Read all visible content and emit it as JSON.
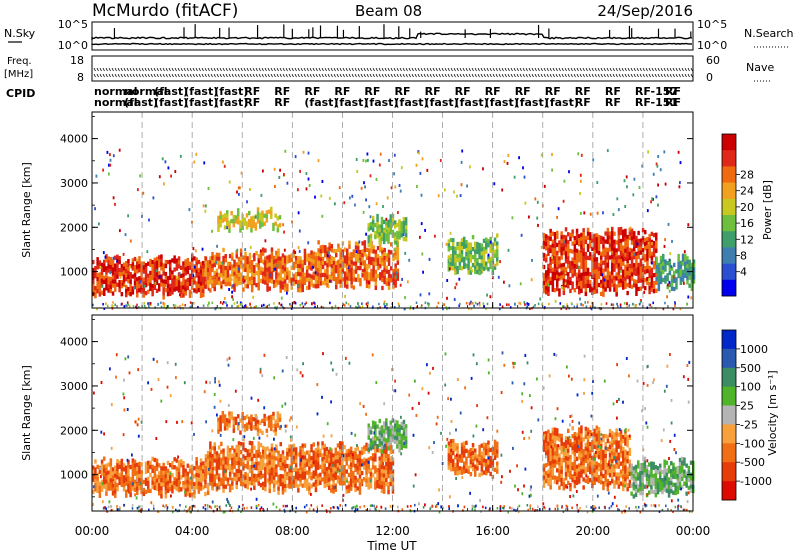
{
  "header": {
    "station": "McMurdo (fitACF)",
    "beam": "Beam 08",
    "date": "24/Sep/2016"
  },
  "strip_labels": {
    "nsky": "N.Sky",
    "nsky_top": "10^5",
    "nsky_bottom": "10^0",
    "nsearch": "N.Search",
    "nsearch_top": "10^5",
    "nsearch_bottom": "10^0",
    "freq_top": "Freq.",
    "freq_unit": "[MHz]",
    "freq_hi": "18",
    "freq_lo": "8",
    "nave": "Nave",
    "nave_hi": "60",
    "nave_lo": "0",
    "cpid": "CPID",
    "cpid_row1": [
      "normal",
      "normal",
      "(fast)",
      "(fast)",
      "(fast)",
      "RF",
      "RF",
      "RF",
      "RF",
      "RF",
      "RF",
      "RF",
      "RF",
      "RF",
      "RF",
      "RF",
      "RF",
      "RF",
      "RF-157",
      "RF"
    ],
    "cpid_row2": [
      "normal",
      "(fast)",
      "(fast)",
      "(fast)",
      "(fast)",
      "RF",
      "RF",
      "(fast)",
      "(fast)",
      "(fast)",
      "(fast)",
      "(fast)",
      "(fast)",
      "(fast)",
      "(fast)",
      "(fast)",
      "RF",
      "RF",
      "RF-151",
      "RF"
    ]
  },
  "x_axis": {
    "label": "Time UT",
    "ticks": [
      "00:00",
      "04:00",
      "08:00",
      "12:00",
      "16:00",
      "20:00",
      "00:00"
    ]
  },
  "chart_data": [
    {
      "type": "heatmap",
      "name": "power",
      "title": "",
      "xlabel": "Time UT",
      "ylabel": "Slant Range [km]",
      "xlim_hours": [
        0,
        24
      ],
      "ylim": [
        180,
        4600
      ],
      "y_ticks": [
        1000,
        2000,
        3000,
        4000
      ],
      "colorbar": {
        "label": "Power [dB]",
        "ticks": [
          "4",
          "8",
          "12",
          "16",
          "20",
          "24",
          "28"
        ],
        "colors": [
          "#0000ee",
          "#2a4fd0",
          "#3f7fb0",
          "#3f9f6a",
          "#6fbf3f",
          "#c8c820",
          "#f2a020",
          "#f06a10",
          "#e02818",
          "#cc0000"
        ]
      },
      "features": [
        {
          "t0": 0.0,
          "t1": 4.5,
          "r0": 550,
          "r1": 1300,
          "level": "28"
        },
        {
          "t0": 4.5,
          "t1": 9.0,
          "r0": 650,
          "r1": 1450,
          "level": "24"
        },
        {
          "t0": 9.0,
          "t1": 12.2,
          "r0": 700,
          "r1": 1600,
          "level": "24"
        },
        {
          "t0": 5.0,
          "t1": 7.5,
          "r0": 2000,
          "r1": 2350,
          "level": "16"
        },
        {
          "t0": 11.0,
          "t1": 12.5,
          "r0": 1700,
          "r1": 2200,
          "level": "12"
        },
        {
          "t0": 14.2,
          "t1": 16.2,
          "r0": 1050,
          "r1": 1750,
          "level": "12"
        },
        {
          "t0": 18.0,
          "t1": 22.5,
          "r0": 600,
          "r1": 1900,
          "level": "28"
        },
        {
          "t0": 22.5,
          "t1": 24.0,
          "r0": 700,
          "r1": 1300,
          "level": "8"
        }
      ]
    },
    {
      "type": "heatmap",
      "name": "velocity",
      "title": "",
      "xlabel": "Time UT",
      "ylabel": "Slant Range [km]",
      "xlim_hours": [
        0,
        24
      ],
      "ylim": [
        180,
        4600
      ],
      "y_ticks": [
        1000,
        2000,
        3000,
        4000
      ],
      "colorbar": {
        "label": "Velocity [m s⁻¹]",
        "ticks": [
          "1000",
          "500",
          "100",
          "25",
          "-25",
          "-100",
          "-500",
          "-1000"
        ],
        "colors": [
          "#0028c8",
          "#2a5ab0",
          "#3c8c64",
          "#50b42a",
          "#b4b4b4",
          "#f7a03c",
          "#f06e14",
          "#e63c0a",
          "#dc0a00"
        ]
      },
      "features": [
        {
          "t0": 0.0,
          "t1": 4.5,
          "r0": 600,
          "r1": 1300,
          "level": "-100"
        },
        {
          "t0": 4.5,
          "t1": 12.0,
          "r0": 700,
          "r1": 1650,
          "level": "-100"
        },
        {
          "t0": 5.0,
          "t1": 7.5,
          "r0": 2000,
          "r1": 2350,
          "level": "-100"
        },
        {
          "t0": 11.0,
          "t1": 12.5,
          "r0": 1600,
          "r1": 2200,
          "level": "100"
        },
        {
          "t0": 14.2,
          "t1": 16.2,
          "r0": 1000,
          "r1": 1700,
          "level": "-100"
        },
        {
          "t0": 18.0,
          "t1": 21.5,
          "r0": 800,
          "r1": 2000,
          "level": "-100"
        },
        {
          "t0": 21.5,
          "t1": 24.0,
          "r0": 650,
          "r1": 1300,
          "level": "100"
        }
      ]
    }
  ]
}
